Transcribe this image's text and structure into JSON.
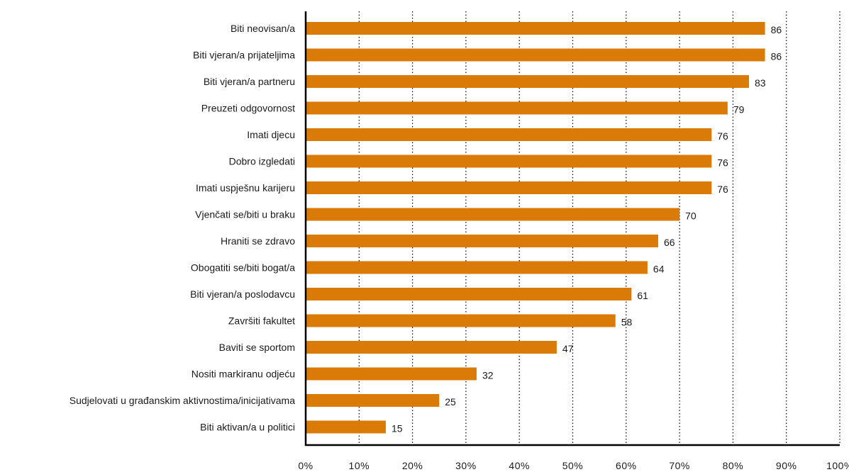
{
  "colors": {
    "bar": "#d97b06",
    "axis": "#000000",
    "grid": "#000000",
    "text": "#1a1a1a"
  },
  "chart_data": {
    "type": "bar",
    "orientation": "horizontal",
    "title": "",
    "xlabel": "",
    "ylabel": "",
    "xlim": [
      0,
      100
    ],
    "grid": "vertical-dotted",
    "legend": "none",
    "categories": [
      "Biti neovisan/a",
      "Biti vjeran/a prijateljima",
      "Biti vjeran/a partneru",
      "Preuzeti odgovornost",
      "Imati djecu",
      "Dobro izgledati",
      "Imati uspješnu karijeru",
      "Vjenčati se/biti u braku",
      "Hraniti se zdravo",
      "Obogatiti se/biti bogat/a",
      "Biti vjeran/a poslodavcu",
      "Završiti fakultet",
      "Baviti se sportom",
      "Nositi markiranu odjeću",
      "Sudjelovati u građanskim aktivnostima/inicijativama",
      "Biti aktivan/a u politici"
    ],
    "values": [
      86,
      86,
      83,
      79,
      76,
      76,
      76,
      70,
      66,
      64,
      61,
      58,
      47,
      32,
      25,
      15
    ],
    "data_labels": [
      "86",
      "86",
      "83",
      "79",
      "76",
      "76",
      "76",
      "70",
      "66",
      "64",
      "61",
      "58",
      "47",
      "32",
      "25",
      "15"
    ],
    "ticks": [
      0,
      10,
      20,
      30,
      40,
      50,
      60,
      70,
      80,
      90,
      100
    ],
    "tick_labels": [
      "0%",
      "10%",
      "20%",
      "30%",
      "40%",
      "50%",
      "60%",
      "70%",
      "80%",
      "90%",
      "100%"
    ]
  }
}
